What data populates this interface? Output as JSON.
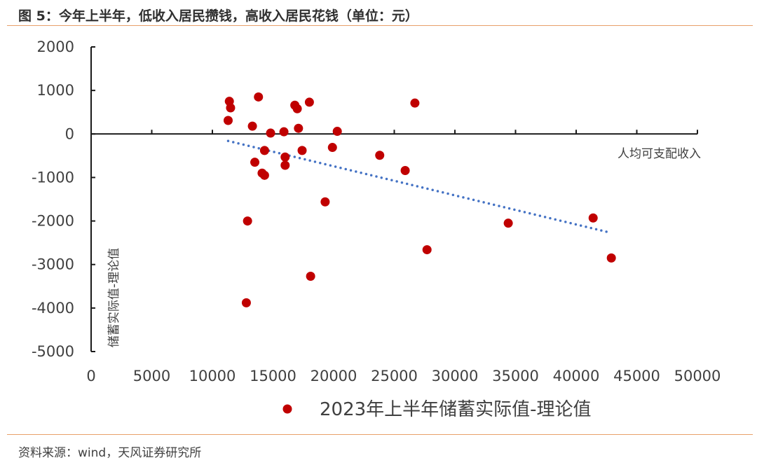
{
  "header": {
    "title": "图 5：今年上半年，低收入居民攒钱，高收入居民花钱（单位：元）"
  },
  "footer": {
    "source": "资料来源：wind，天风证券研究所"
  },
  "chart_data": {
    "type": "scatter",
    "title": "图 5：今年上半年，低收入居民攒钱，高收入居民花钱（单位：元）",
    "xlabel": "人均可支配收入",
    "ylabel": "储蓄实际值-理论值",
    "xlim": [
      0,
      50000
    ],
    "ylim": [
      -5000,
      2000
    ],
    "x_ticks": [
      0,
      5000,
      10000,
      15000,
      20000,
      25000,
      30000,
      35000,
      40000,
      45000,
      50000
    ],
    "y_ticks": [
      2000,
      1000,
      0,
      -1000,
      -2000,
      -3000,
      -4000,
      -5000
    ],
    "x_tick_labels": [
      "0",
      "5000",
      "10000",
      "15000",
      "20000",
      "25000",
      "30000",
      "35000",
      "40000",
      "45000",
      "50000"
    ],
    "y_tick_labels": [
      "2000",
      "1000",
      "0",
      "-1000",
      "-2000",
      "-3000",
      "-4000",
      "-5000"
    ],
    "legend": [
      "2023年上半年储蓄实际值-理论值"
    ],
    "legend_position": "bottom",
    "marker_color": "#c00000",
    "trendline_color": "#4472c4",
    "series": [
      {
        "name": "2023年上半年储蓄实际值-理论值",
        "x": [
          11400,
          11500,
          11300,
          13800,
          13300,
          14300,
          14800,
          15900,
          16000,
          16000,
          13500,
          14100,
          14300,
          12900,
          12800,
          16800,
          17000,
          17100,
          17400,
          18000,
          18100,
          19300,
          19900,
          20300,
          23800,
          25900,
          26700,
          27700,
          34400,
          41400,
          42900
        ],
        "y": [
          750,
          600,
          310,
          850,
          180,
          -380,
          20,
          50,
          -530,
          -720,
          -650,
          -900,
          -950,
          -2000,
          -3880,
          660,
          580,
          130,
          -380,
          730,
          -3270,
          -1560,
          -310,
          60,
          -490,
          -840,
          710,
          -2660,
          -2050,
          -1930,
          -2850
        ]
      }
    ],
    "trendline": {
      "type": "linear",
      "x": [
        11300,
        42700
      ],
      "y": [
        -160,
        -2260
      ]
    }
  }
}
